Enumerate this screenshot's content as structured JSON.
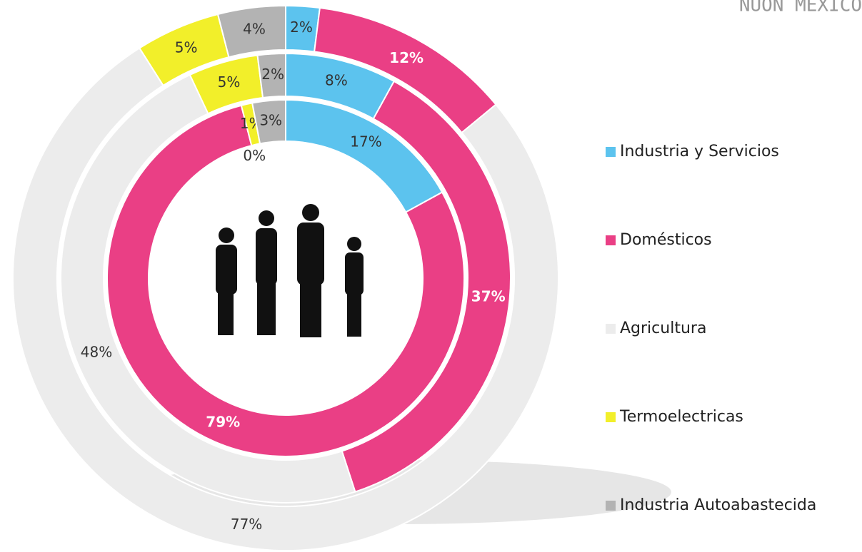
{
  "chart_data": {
    "type": "donut",
    "title": "NUON MEXICO",
    "categories": [
      "Industria y Servicios",
      "Domésticos",
      "Agricultura",
      "Termoelectricas",
      "Industria Autoabastecida"
    ],
    "colors": [
      "#5cc3ee",
      "#ea3f85",
      "#ececec",
      "#f2ef2a",
      "#b3b3b3"
    ],
    "series": [
      {
        "values": [
          17,
          79,
          0,
          1,
          3
        ],
        "value_labels": [
          "17%",
          "79%",
          "0%",
          "1%",
          "3%"
        ]
      },
      {
        "values": [
          8,
          37,
          48,
          5,
          2
        ],
        "value_labels": [
          "8%",
          "37%",
          "48%",
          "5%",
          "2%"
        ]
      },
      {
        "values": [
          2,
          12,
          77,
          5,
          4
        ],
        "value_labels": [
          "2%",
          "12%",
          "77%",
          "5%",
          "4%"
        ]
      }
    ]
  }
}
